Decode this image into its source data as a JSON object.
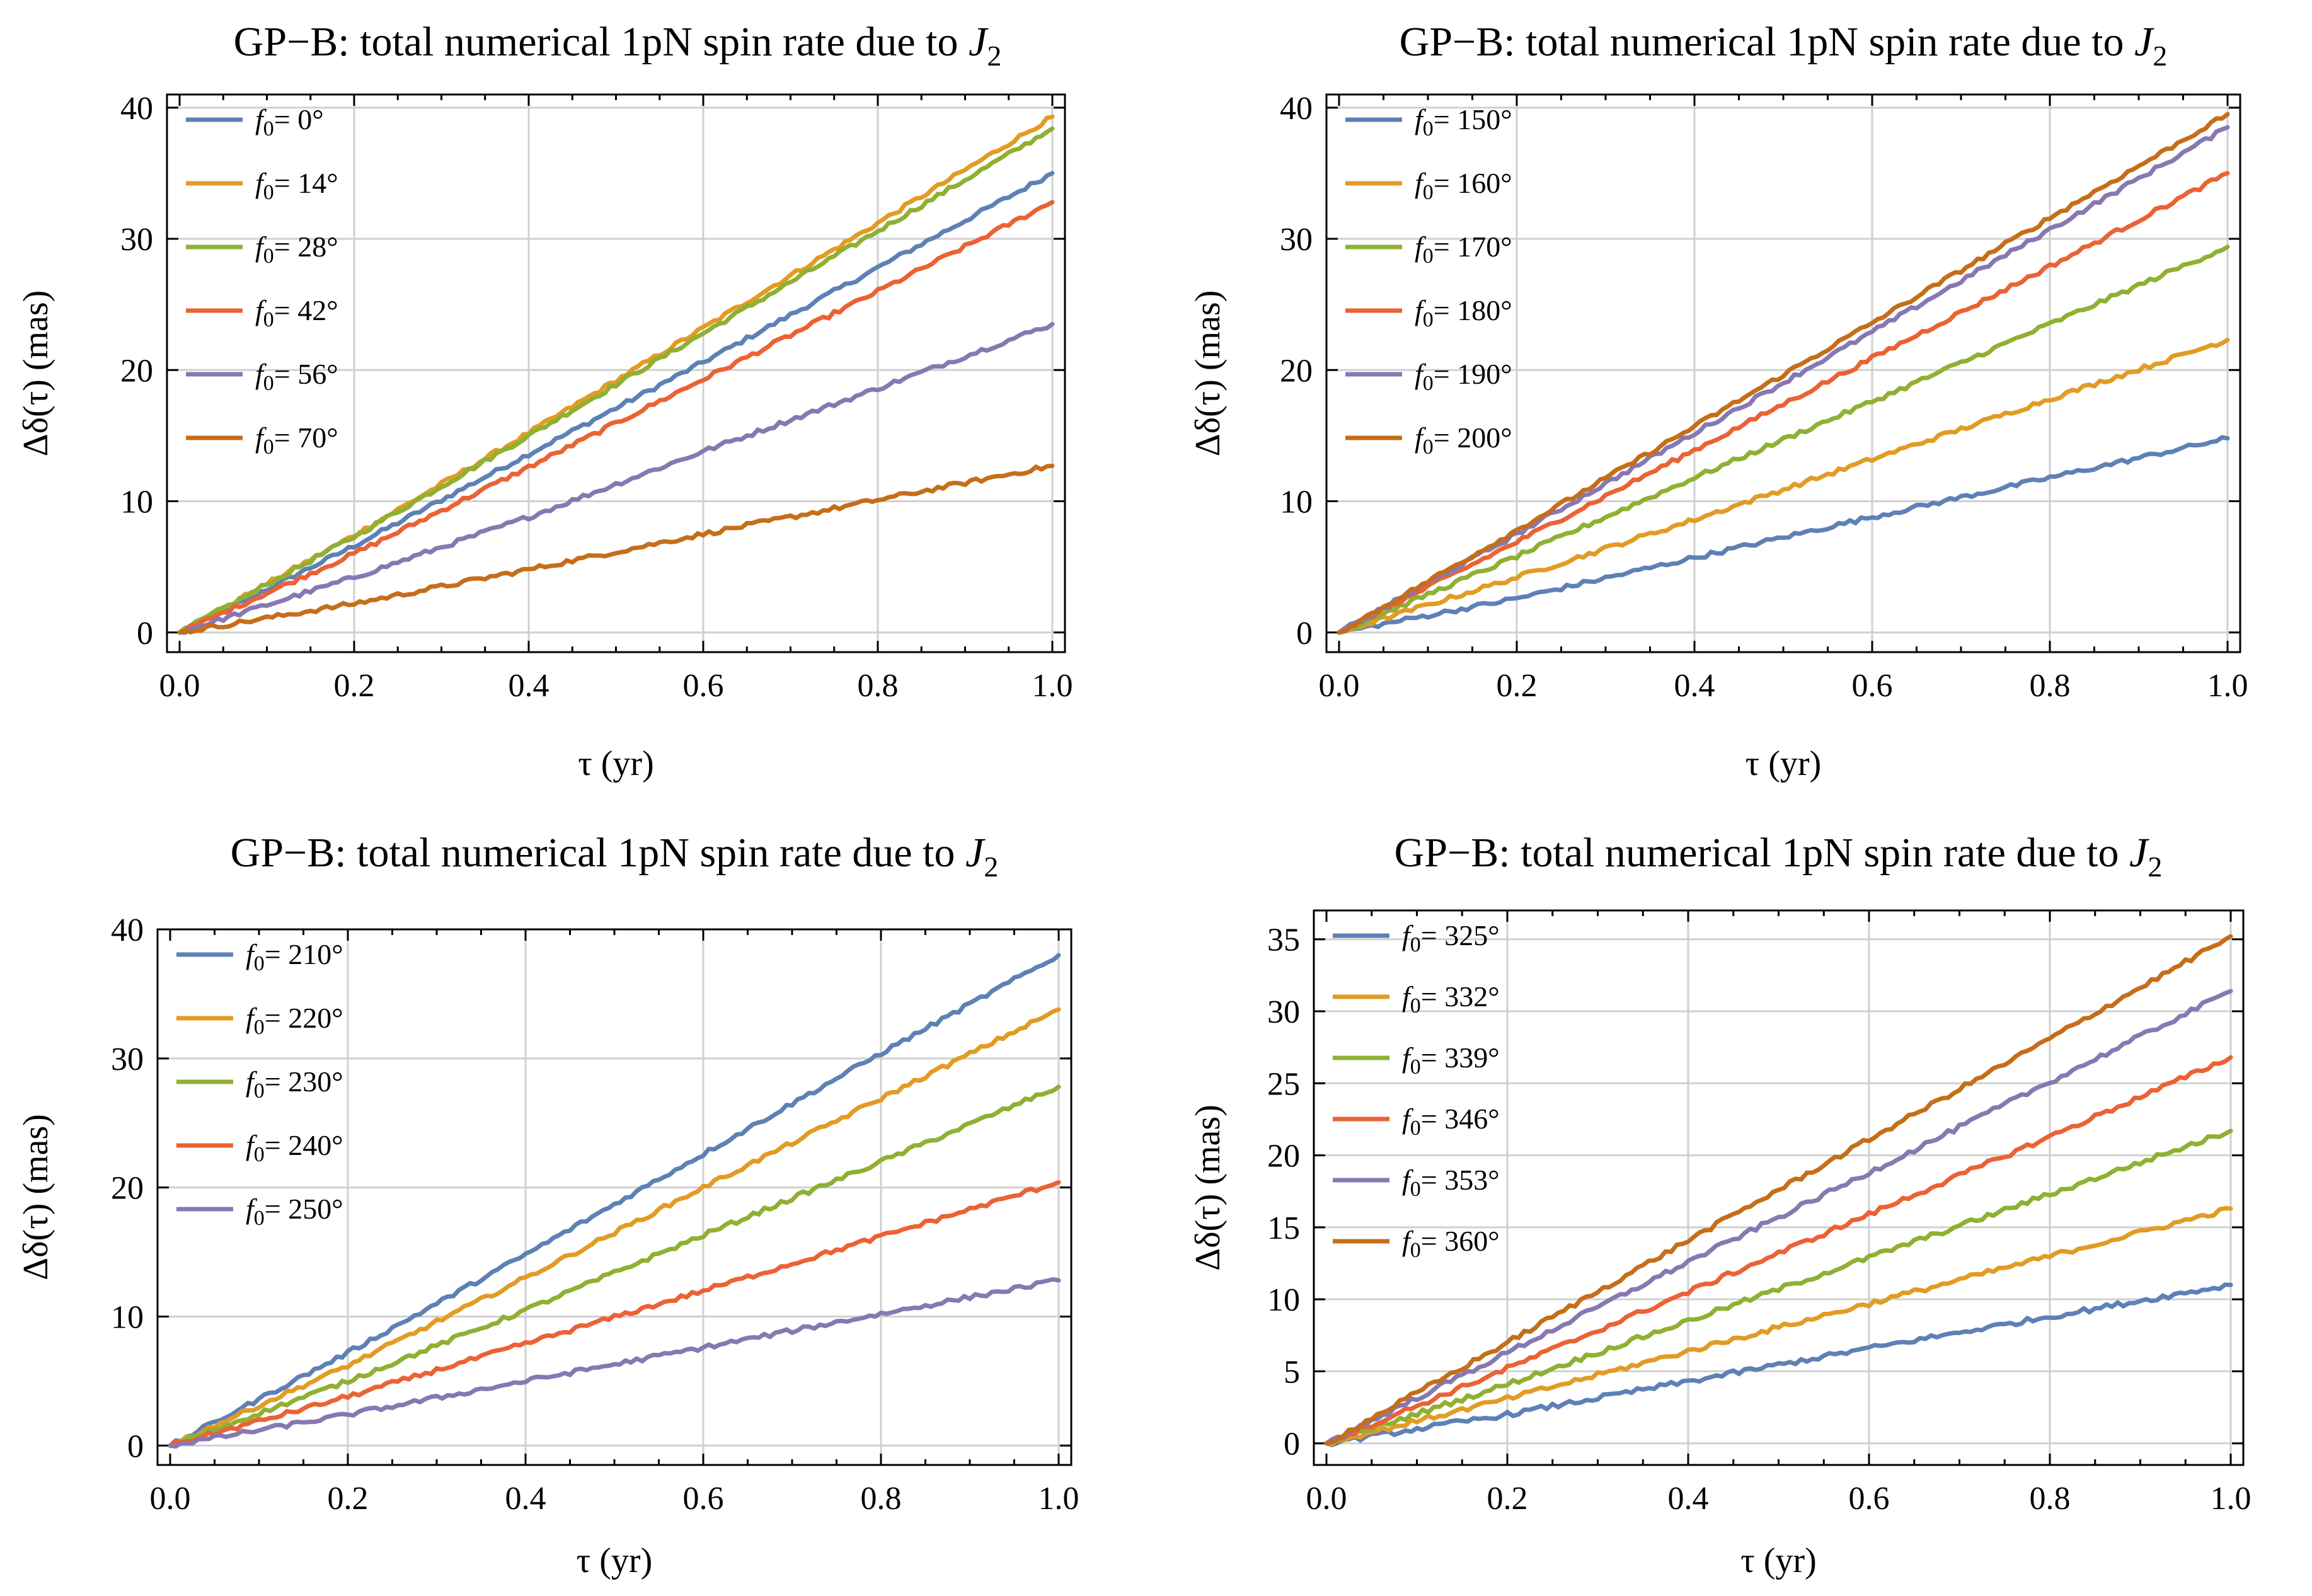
{
  "chart_data": [
    {
      "type": "line",
      "title": "GP−B: total numerical 1pN spin rate due to ",
      "title_math": "J",
      "title_sub": "2",
      "xlabel": "τ  (yr)",
      "ylabel": "Δδ(τ)  (mas)",
      "xlim": [
        0,
        1
      ],
      "ylim": [
        -1.5,
        41
      ],
      "xticks": [
        0.0,
        0.2,
        0.4,
        0.6,
        0.8,
        1.0
      ],
      "xtick_labels": [
        "0.0",
        "0.2",
        "0.4",
        "0.6",
        "0.8",
        "1.0"
      ],
      "yticks": [
        0,
        10,
        20,
        30,
        40
      ],
      "ytick_labels": [
        "0",
        "10",
        "20",
        "30",
        "40"
      ],
      "grid": true,
      "legend_position": "top-left",
      "x": [
        0.0,
        0.2,
        0.4,
        0.6,
        0.8,
        1.0
      ],
      "series": [
        {
          "name": "f0= 0°",
          "legend_sub": "0",
          "legend_value": "= 0°",
          "color": "#5e81b5",
          "values": [
            0,
            6.6,
            13.6,
            20.6,
            27.8,
            35.0
          ]
        },
        {
          "name": "f0= 14°",
          "legend_sub": "0",
          "legend_value": "= 14°",
          "color": "#e19c24",
          "values": [
            0,
            7.4,
            15.2,
            23.2,
            31.2,
            39.3
          ]
        },
        {
          "name": "f0= 28°",
          "legend_sub": "0",
          "legend_value": "= 28°",
          "color": "#8fb032",
          "values": [
            0,
            7.3,
            15.0,
            22.8,
            30.6,
            38.4
          ]
        },
        {
          "name": "f0= 42°",
          "legend_sub": "0",
          "legend_value": "= 42°",
          "color": "#eb6235",
          "values": [
            0,
            6.0,
            12.6,
            19.3,
            26.0,
            32.8
          ]
        },
        {
          "name": "f0= 56°",
          "legend_sub": "0",
          "legend_value": "= 56°",
          "color": "#8778b3",
          "values": [
            0,
            4.2,
            8.8,
            13.8,
            18.6,
            23.5
          ]
        },
        {
          "name": "f0= 70°",
          "legend_sub": "0",
          "legend_value": "= 70°",
          "color": "#c56e1a",
          "values": [
            0,
            2.2,
            4.8,
            7.5,
            10.1,
            12.7
          ]
        }
      ]
    },
    {
      "type": "line",
      "title": "GP−B: total numerical 1pN spin rate due to ",
      "title_math": "J",
      "title_sub": "2",
      "xlabel": "τ  (yr)",
      "ylabel": "Δδ(τ)  (mas)",
      "xlim": [
        0,
        1
      ],
      "ylim": [
        -1.5,
        41
      ],
      "xticks": [
        0.0,
        0.2,
        0.4,
        0.6,
        0.8,
        1.0
      ],
      "xtick_labels": [
        "0.0",
        "0.2",
        "0.4",
        "0.6",
        "0.8",
        "1.0"
      ],
      "yticks": [
        0,
        10,
        20,
        30,
        40
      ],
      "ytick_labels": [
        "0",
        "10",
        "20",
        "30",
        "40"
      ],
      "grid": true,
      "legend_position": "top-left",
      "x": [
        0.0,
        0.2,
        0.4,
        0.6,
        0.8,
        1.0
      ],
      "series": [
        {
          "name": "f0= 150°",
          "legend_sub": "0",
          "legend_value": "= 150°",
          "color": "#5e81b5",
          "values": [
            0,
            2.6,
            5.7,
            8.8,
            11.8,
            14.8
          ]
        },
        {
          "name": "f0= 160°",
          "legend_sub": "0",
          "legend_value": "= 160°",
          "color": "#e19c24",
          "values": [
            0,
            4.2,
            8.6,
            13.2,
            17.8,
            22.3
          ]
        },
        {
          "name": "f0= 170°",
          "legend_sub": "0",
          "legend_value": "= 170°",
          "color": "#8fb032",
          "values": [
            0,
            5.8,
            11.8,
            17.6,
            23.5,
            29.4
          ]
        },
        {
          "name": "f0= 180°",
          "legend_sub": "0",
          "legend_value": "= 180°",
          "color": "#eb6235",
          "values": [
            0,
            6.9,
            13.9,
            20.9,
            27.9,
            35.0
          ]
        },
        {
          "name": "f0= 190°",
          "legend_sub": "0",
          "legend_value": "= 190°",
          "color": "#8778b3",
          "values": [
            0,
            7.5,
            15.2,
            22.9,
            30.7,
            38.5
          ]
        },
        {
          "name": "f0= 200°",
          "legend_sub": "0",
          "legend_value": "= 200°",
          "color": "#c56e1a",
          "values": [
            0,
            7.8,
            15.7,
            23.6,
            31.6,
            39.5
          ]
        }
      ]
    },
    {
      "type": "line",
      "title": "GP−B: total numerical 1pN spin rate due to ",
      "title_math": "J",
      "title_sub": "2",
      "xlabel": "τ  (yr)",
      "ylabel": "Δδ(τ)  (mas)",
      "xlim": [
        0,
        1
      ],
      "ylim": [
        -1.5,
        40
      ],
      "xticks": [
        0.0,
        0.2,
        0.4,
        0.6,
        0.8,
        1.0
      ],
      "xtick_labels": [
        "0.0",
        "0.2",
        "0.4",
        "0.6",
        "0.8",
        "1.0"
      ],
      "yticks": [
        0,
        10,
        20,
        30,
        40
      ],
      "ytick_labels": [
        "0",
        "10",
        "20",
        "30",
        "40"
      ],
      "grid": true,
      "legend_position": "top-left",
      "x": [
        0.0,
        0.2,
        0.4,
        0.6,
        0.8,
        1.0
      ],
      "series": [
        {
          "name": "f0= 210°",
          "legend_sub": "0",
          "legend_value": "= 210°",
          "color": "#5e81b5",
          "values": [
            0,
            7.2,
            14.8,
            22.6,
            30.4,
            38.0
          ]
        },
        {
          "name": "f0= 220°",
          "legend_sub": "0",
          "legend_value": "= 220°",
          "color": "#e19c24",
          "values": [
            0,
            6.2,
            13.0,
            20.0,
            26.9,
            33.8
          ]
        },
        {
          "name": "f0= 230°",
          "legend_sub": "0",
          "legend_value": "= 230°",
          "color": "#8fb032",
          "values": [
            0,
            5.0,
            10.5,
            16.3,
            22.0,
            27.8
          ]
        },
        {
          "name": "f0= 240°",
          "legend_sub": "0",
          "legend_value": "= 240°",
          "color": "#eb6235",
          "values": [
            0,
            3.8,
            7.9,
            12.0,
            16.2,
            20.4
          ]
        },
        {
          "name": "f0= 250°",
          "legend_sub": "0",
          "legend_value": "= 250°",
          "color": "#8778b3",
          "values": [
            0,
            2.4,
            5.0,
            7.6,
            10.2,
            12.8
          ]
        }
      ]
    },
    {
      "type": "line",
      "title": "GP−B: total numerical 1pN spin rate due to ",
      "title_math": "J",
      "title_sub": "2",
      "xlabel": "τ  (yr)",
      "ylabel": "Δδ(τ)  (mas)",
      "xlim": [
        0,
        1
      ],
      "ylim": [
        -1.5,
        37
      ],
      "xticks": [
        0.0,
        0.2,
        0.4,
        0.6,
        0.8,
        1.0
      ],
      "xtick_labels": [
        "0.0",
        "0.2",
        "0.4",
        "0.6",
        "0.8",
        "1.0"
      ],
      "yticks": [
        0,
        5,
        10,
        15,
        20,
        25,
        30,
        35
      ],
      "ytick_labels": [
        "0",
        "5",
        "10",
        "15",
        "20",
        "25",
        "30",
        "35"
      ],
      "grid": true,
      "legend_position": "top-left",
      "x": [
        0.0,
        0.2,
        0.4,
        0.6,
        0.8,
        1.0
      ],
      "series": [
        {
          "name": "f0= 325°",
          "legend_sub": "0",
          "legend_value": "= 325°",
          "color": "#5e81b5",
          "values": [
            0,
            2.0,
            4.3,
            6.6,
            8.8,
            11.0
          ]
        },
        {
          "name": "f0= 332°",
          "legend_sub": "0",
          "legend_value": "= 332°",
          "color": "#e19c24",
          "values": [
            0,
            3.1,
            6.4,
            9.7,
            13.0,
            16.3
          ]
        },
        {
          "name": "f0= 339°",
          "legend_sub": "0",
          "legend_value": "= 339°",
          "color": "#8fb032",
          "values": [
            0,
            4.1,
            8.5,
            12.9,
            17.3,
            21.7
          ]
        },
        {
          "name": "f0= 346°",
          "legend_sub": "0",
          "legend_value": "= 346°",
          "color": "#eb6235",
          "values": [
            0,
            5.2,
            10.5,
            15.9,
            21.3,
            26.8
          ]
        },
        {
          "name": "f0= 353°",
          "legend_sub": "0",
          "legend_value": "= 353°",
          "color": "#8778b3",
          "values": [
            0,
            6.3,
            12.6,
            18.8,
            25.1,
            31.4
          ]
        },
        {
          "name": "f0= 360°",
          "legend_sub": "0",
          "legend_value": "= 360°",
          "color": "#c56e1a",
          "values": [
            0,
            7.0,
            14.1,
            21.1,
            28.1,
            35.2
          ]
        }
      ]
    }
  ]
}
